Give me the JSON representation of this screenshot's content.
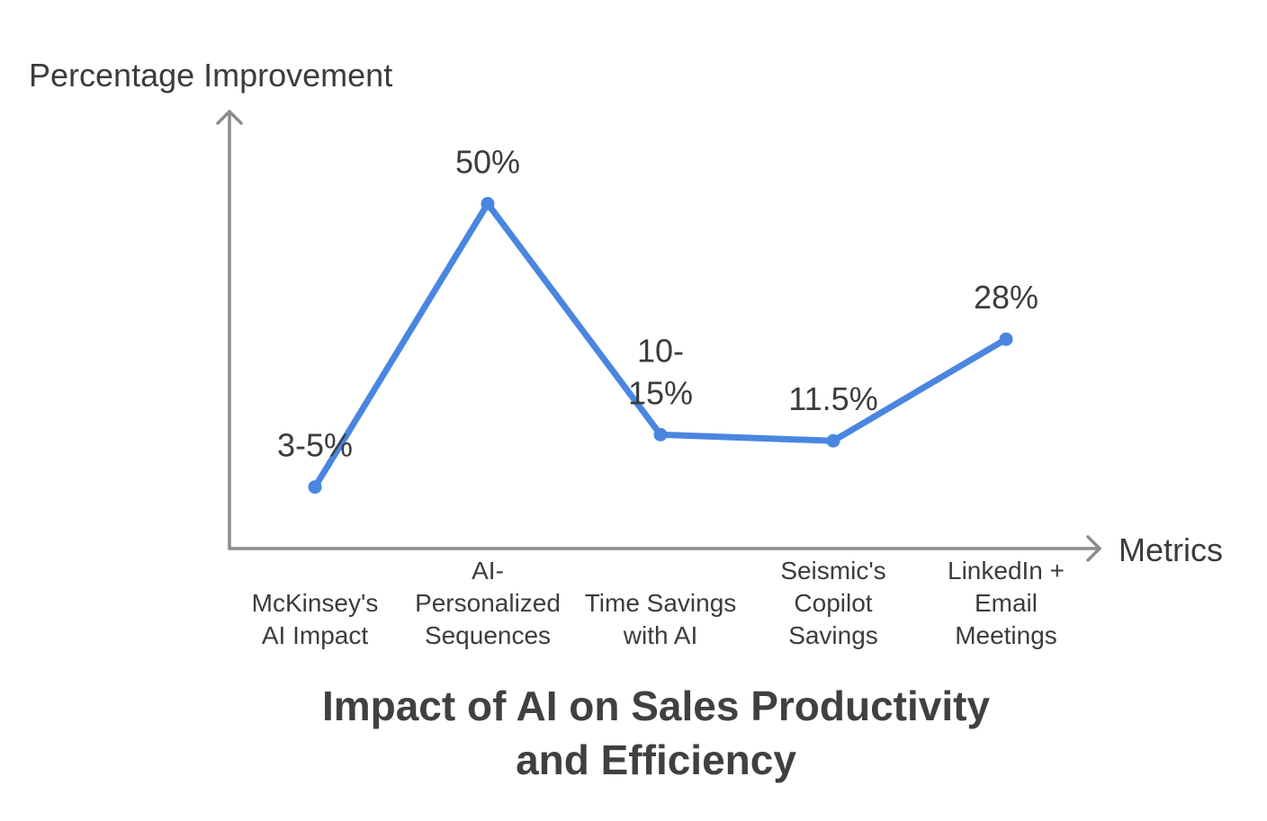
{
  "chart_data": {
    "type": "line",
    "title_lines": [
      "Impact of AI on Sales Productivity",
      "and Efficiency"
    ],
    "xlabel": "Metrics",
    "ylabel": "Percentage Improvement",
    "categories": [
      [
        "McKinsey's",
        "AI Impact"
      ],
      [
        "AI-",
        "Personalized",
        "Sequences"
      ],
      [
        "Time Savings",
        "with AI"
      ],
      [
        "Seismic's",
        "Copilot",
        "Savings"
      ],
      [
        "LinkedIn +",
        "Email",
        "Meetings"
      ]
    ],
    "series": [
      {
        "values": [
          4,
          50,
          12.5,
          11.5,
          28
        ],
        "labels": [
          [
            "3-5%"
          ],
          [
            "50%"
          ],
          [
            "10-",
            "15%"
          ],
          [
            "11.5%"
          ],
          [
            "28%"
          ]
        ]
      }
    ],
    "grid": false,
    "colors": {
      "line": "#4a86e0",
      "axis": "#8c8c8c",
      "text": "#3c3c3c"
    }
  }
}
